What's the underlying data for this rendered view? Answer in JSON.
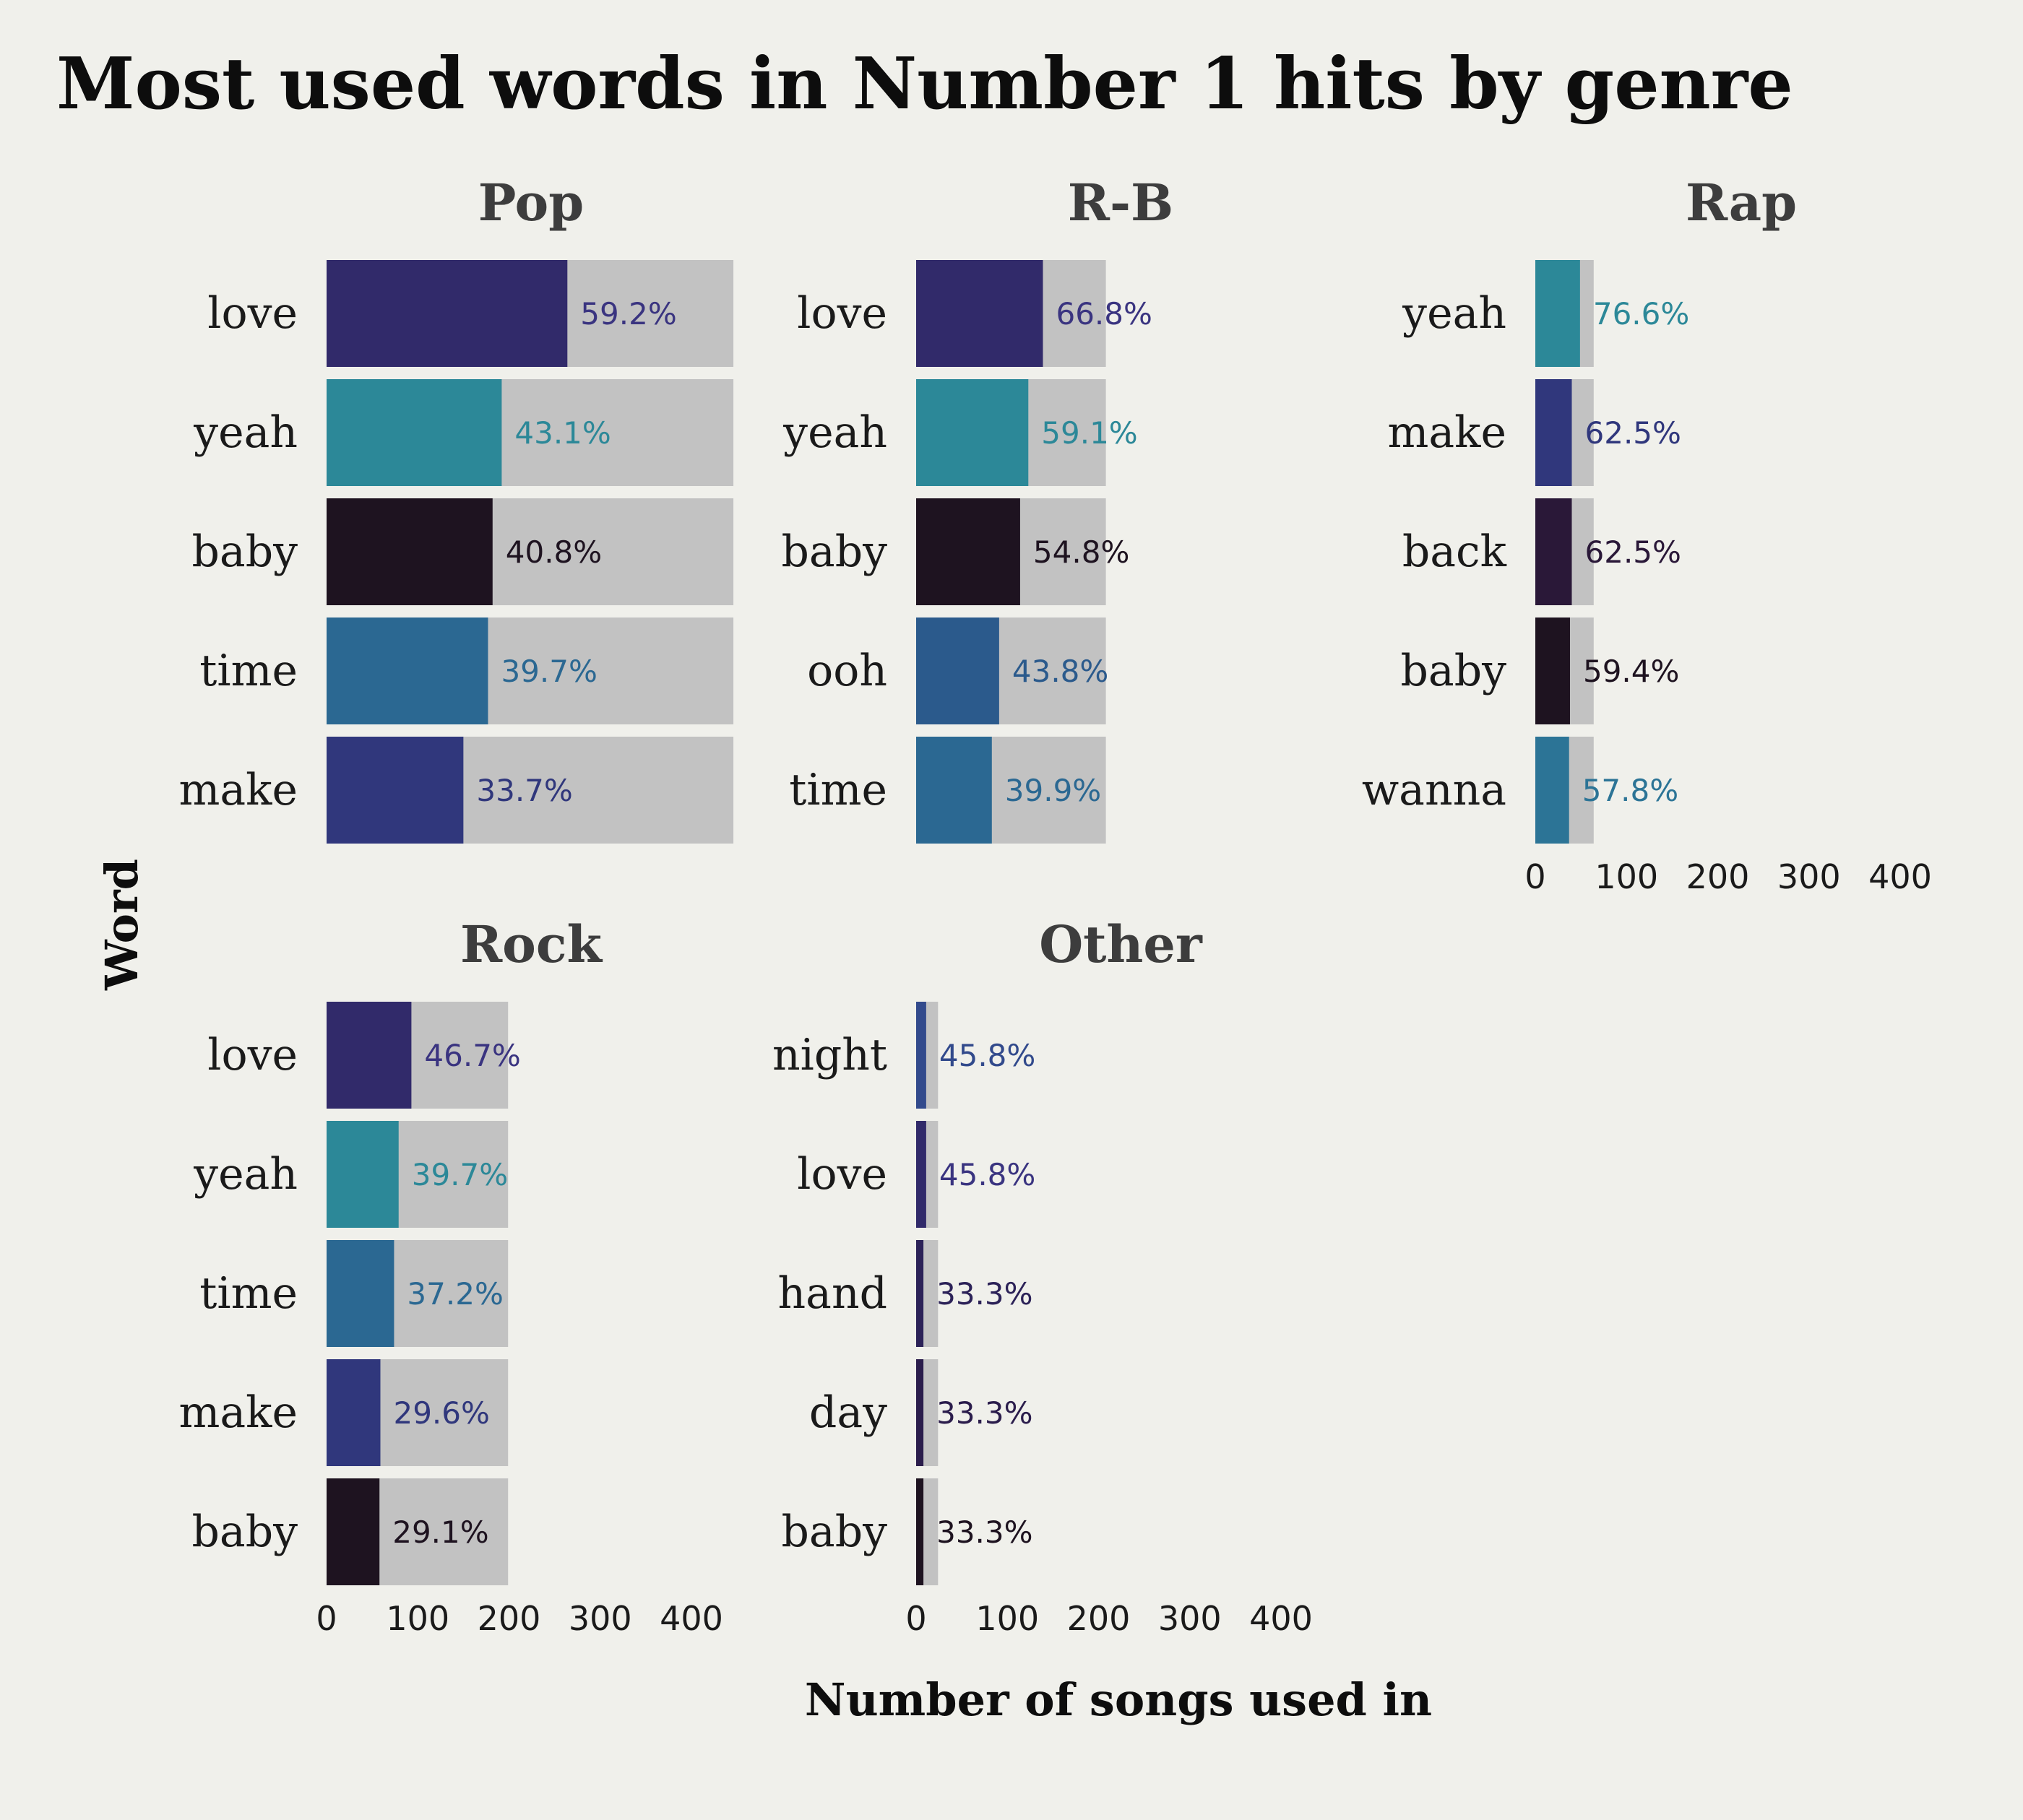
{
  "chart_data": {
    "type": "bar",
    "title": "Most used words in Number 1 hits by genre",
    "xlabel": "Number of songs used in",
    "ylabel": "Word",
    "xlim": [
      0,
      440
    ],
    "xticks": [
      0,
      100,
      200,
      300,
      400
    ],
    "colors": {
      "background": "#f0f0eb",
      "total_bar": "#c2c2c2",
      "love": "#312a6a",
      "yeah": "#2c8898",
      "baby": "#1e1320",
      "time": "#2b6892",
      "make": "#30377c",
      "ooh": "#2b5a8c",
      "back": "#2a1838",
      "wanna": "#2c7496",
      "night": "#324a8c",
      "hand": "#2c2258",
      "day": "#2b1d4c"
    },
    "panels": [
      {
        "genre": "Pop",
        "total_songs": 446,
        "words": [
          "love",
          "yeah",
          "baby",
          "time",
          "make"
        ],
        "values": [
          264,
          192,
          182,
          177,
          150
        ],
        "percent_labels": [
          "59.2%",
          "43.1%",
          "40.8%",
          "39.7%",
          "33.7%"
        ],
        "percent_colors": [
          "#3a3480",
          "#2c8898",
          "#1e1320",
          "#2b6892",
          "#30377c"
        ]
      },
      {
        "genre": "R-B",
        "total_songs": 208,
        "words": [
          "love",
          "yeah",
          "baby",
          "ooh",
          "time"
        ],
        "values": [
          139,
          123,
          114,
          91,
          83
        ],
        "percent_labels": [
          "66.8%",
          "59.1%",
          "54.8%",
          "43.8%",
          "39.9%"
        ],
        "percent_colors": [
          "#3a3480",
          "#2c8898",
          "#1e1320",
          "#2b5a8c",
          "#2b6892"
        ]
      },
      {
        "genre": "Rap",
        "total_songs": 64,
        "words": [
          "yeah",
          "make",
          "back",
          "baby",
          "wanna"
        ],
        "values": [
          49,
          40,
          40,
          38,
          37
        ],
        "percent_labels": [
          "76.6%",
          "62.5%",
          "62.5%",
          "59.4%",
          "57.8%"
        ],
        "percent_colors": [
          "#2c8898",
          "#30377c",
          "#2a1838",
          "#1e1320",
          "#2c7496"
        ]
      },
      {
        "genre": "Rock",
        "total_songs": 199,
        "words": [
          "love",
          "yeah",
          "time",
          "make",
          "baby"
        ],
        "values": [
          93,
          79,
          74,
          59,
          58
        ],
        "percent_labels": [
          "46.7%",
          "39.7%",
          "37.2%",
          "29.6%",
          "29.1%"
        ],
        "percent_colors": [
          "#3a3480",
          "#2c8898",
          "#2b6892",
          "#30377c",
          "#1e1320"
        ]
      },
      {
        "genre": "Other",
        "total_songs": 24,
        "words": [
          "night",
          "love",
          "hand",
          "day",
          "baby"
        ],
        "values": [
          11,
          11,
          8,
          8,
          8
        ],
        "percent_labels": [
          "45.8%",
          "45.8%",
          "33.3%",
          "33.3%",
          "33.3%"
        ],
        "percent_colors": [
          "#324a8c",
          "#3a3480",
          "#2c2258",
          "#2b1d4c",
          "#1e1320"
        ]
      }
    ]
  }
}
